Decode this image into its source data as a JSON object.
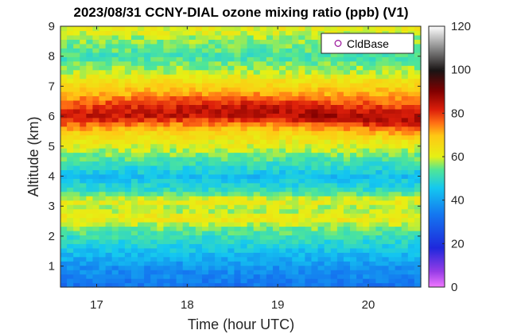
{
  "chart_data": {
    "type": "heatmap",
    "title": "2023/08/31 CCNY-DIAL ozone mixing ratio (ppb) (V1)",
    "xlabel": "Time (hour UTC)",
    "ylabel": "Altitude (km)",
    "xlim": [
      16.6,
      20.58
    ],
    "ylim": [
      0.3,
      9.0
    ],
    "x_ticks": [
      17,
      18,
      19,
      20
    ],
    "x_tick_labels": [
      "17",
      "18",
      "19",
      "20"
    ],
    "y_ticks": [
      1,
      2,
      3,
      4,
      5,
      6,
      7,
      8,
      9
    ],
    "y_tick_labels": [
      "1",
      "2",
      "3",
      "4",
      "5",
      "6",
      "7",
      "8",
      "9"
    ],
    "colorbar": {
      "min": 0,
      "max": 120,
      "ticks": [
        0,
        20,
        40,
        60,
        80,
        100,
        120
      ],
      "tick_labels": [
        "0",
        "20",
        "40",
        "60",
        "80",
        "100",
        "120"
      ],
      "colormap": "jet-extended (magenta-blue-cyan-green-yellow-red-black-white)"
    },
    "legend": {
      "entries": [
        "CldBase"
      ],
      "marker": "circle",
      "marker_color": "#a020a0",
      "position": "top-right"
    },
    "grid": false,
    "profiles": [
      {
        "altitude_km": 0.4,
        "ozone_ppb": 33
      },
      {
        "altitude_km": 0.7,
        "ozone_ppb": 36
      },
      {
        "altitude_km": 1.0,
        "ozone_ppb": 38
      },
      {
        "altitude_km": 1.3,
        "ozone_ppb": 42
      },
      {
        "altitude_km": 1.6,
        "ozone_ppb": 46
      },
      {
        "altitude_km": 2.0,
        "ozone_ppb": 51
      },
      {
        "altitude_km": 2.3,
        "ozone_ppb": 56
      },
      {
        "altitude_km": 2.6,
        "ozone_ppb": 63
      },
      {
        "altitude_km": 2.9,
        "ozone_ppb": 57
      },
      {
        "altitude_km": 3.2,
        "ozone_ppb": 62
      },
      {
        "altitude_km": 3.5,
        "ozone_ppb": 51
      },
      {
        "altitude_km": 4.0,
        "ozone_ppb": 44
      },
      {
        "altitude_km": 4.5,
        "ozone_ppb": 52
      },
      {
        "altitude_km": 5.0,
        "ozone_ppb": 60
      },
      {
        "altitude_km": 5.5,
        "ozone_ppb": 66
      },
      {
        "altitude_km": 6.0,
        "ozone_ppb": 76
      },
      {
        "altitude_km": 6.5,
        "ozone_ppb": 74
      },
      {
        "altitude_km": 7.0,
        "ozone_ppb": 67
      },
      {
        "altitude_km": 7.5,
        "ozone_ppb": 58
      },
      {
        "altitude_km": 8.0,
        "ozone_ppb": 52
      },
      {
        "altitude_km": 8.5,
        "ozone_ppb": 56
      },
      {
        "altitude_km": 9.0,
        "ozone_ppb": 62
      }
    ]
  }
}
